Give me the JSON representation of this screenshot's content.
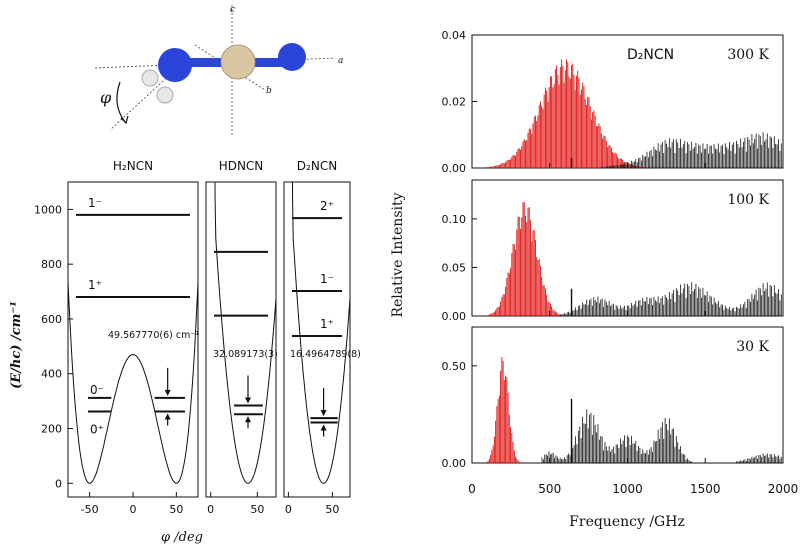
{
  "molecule": {
    "axis_a": "a",
    "axis_b": "b",
    "axis_c": "c",
    "angle_symbol": "φ",
    "colors": {
      "nitrogen": "#2a45d8",
      "carbon": "#d9c7a3",
      "hydrogen": "#e8e8e8"
    }
  },
  "chart_data": [
    {
      "type": "line",
      "panel": "potential",
      "ylabel": "(E/hc) /cm⁻¹",
      "xlabel": "φ /deg",
      "ylim": [
        -50,
        1100
      ],
      "yticks": [
        "0",
        "200",
        "400",
        "600",
        "800",
        "1000"
      ],
      "subpanels": [
        {
          "title": "H₂NCN",
          "xlim": [
            -75,
            75
          ],
          "xticks": [
            "-50",
            "0",
            "50"
          ],
          "barrier": 470,
          "levels": [
            {
              "label": "0⁺",
              "energy": 262
            },
            {
              "label": "0⁻",
              "energy": 312
            },
            {
              "label": "1⁺",
              "energy": 680
            },
            {
              "label": "1⁻",
              "energy": 980
            }
          ],
          "splitting": "49.567770(6) cm⁻¹"
        },
        {
          "title": "HDNCN",
          "xlim": [
            -5,
            70
          ],
          "xticks": [
            "0",
            "50"
          ],
          "levels": [
            {
              "label": "",
              "energy": 252
            },
            {
              "label": "",
              "energy": 284
            },
            {
              "label": "",
              "energy": 612
            },
            {
              "label": "",
              "energy": 845
            }
          ],
          "splitting": "32.089173(3)"
        },
        {
          "title": "D₂NCN",
          "xlim": [
            -5,
            70
          ],
          "xticks": [
            "0",
            "50"
          ],
          "levels": [
            {
              "label": "",
              "energy": 222
            },
            {
              "label": "",
              "energy": 238
            },
            {
              "label": "1⁺",
              "energy": 538
            },
            {
              "label": "1⁻",
              "energy": 702
            },
            {
              "label": "2⁺",
              "energy": 968
            }
          ],
          "splitting": "16.4964789(8)"
        }
      ]
    },
    {
      "type": "bar",
      "panel": "spectra",
      "xlabel": "Frequency /GHz",
      "ylabel": "Relative Intensity",
      "xlim": [
        0,
        2000
      ],
      "xticks": [
        "0",
        "500",
        "1000",
        "1500",
        "2000"
      ],
      "series_colors": {
        "red": "#e01010",
        "black": "#111111"
      },
      "subpanels": [
        {
          "temperature": "300 K",
          "species": "D₂NCN",
          "ylim": [
            0,
            0.04
          ],
          "yticks": [
            "0.00",
            "0.02",
            "0.04"
          ],
          "red_peak_x": 600,
          "red_peak_y": 0.033,
          "red_width": 230
        },
        {
          "temperature": "100 K",
          "ylim": [
            0,
            0.14
          ],
          "yticks": [
            "0.00",
            "0.05",
            "0.10"
          ],
          "red_peak_x": 340,
          "red_peak_y": 0.12,
          "red_width": 110
        },
        {
          "temperature": "30 K",
          "ylim": [
            0,
            0.7
          ],
          "yticks": [
            "0.00",
            "0.50"
          ],
          "red_peak_x": 200,
          "red_peak_y": 0.56,
          "red_width": 50
        }
      ]
    }
  ]
}
